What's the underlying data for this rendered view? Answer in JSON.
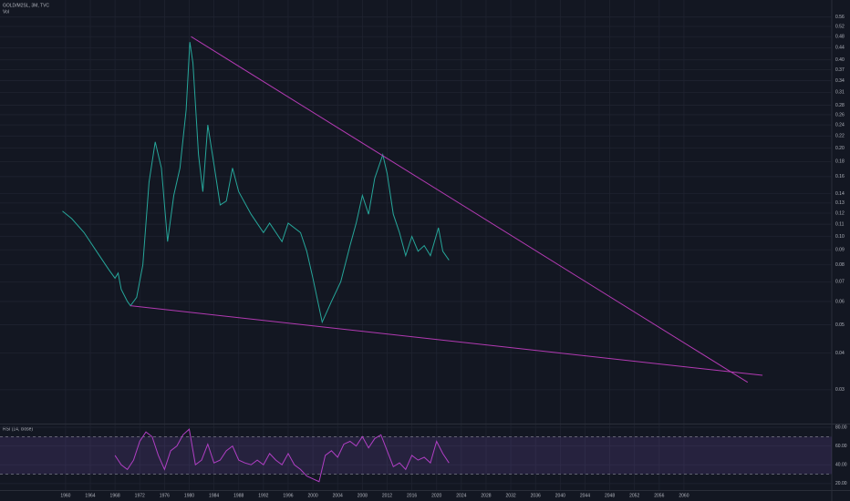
{
  "chart_data": [
    {
      "type": "line",
      "title": "GOLD/M2SL, 3M, TVC",
      "subtitle": "Vol",
      "log_scale": true,
      "grid": true,
      "color": "#26a69a",
      "x": [
        1959.5,
        1961,
        1963,
        1965,
        1967,
        1968,
        1968.5,
        1969,
        1970,
        1970.5,
        1971.5,
        1972.5,
        1973.5,
        1974.5,
        1975.5,
        1976.5,
        1977.5,
        1978.5,
        1979.5,
        1980.1,
        1980.6,
        1981.5,
        1982.2,
        1983,
        1984,
        1985,
        1986,
        1987,
        1988,
        1990,
        1992,
        1993,
        1995,
        1996,
        1998,
        1999,
        2000,
        2001.5,
        2003,
        2004.5,
        2006,
        2007,
        2008,
        2009,
        2010,
        2011.3,
        2012,
        2013,
        2014,
        2015,
        2016,
        2017,
        2018,
        2019,
        2020.3,
        2021,
        2022
      ],
      "values": [
        0.122,
        0.115,
        0.103,
        0.089,
        0.077,
        0.072,
        0.075,
        0.066,
        0.06,
        0.058,
        0.062,
        0.08,
        0.153,
        0.21,
        0.171,
        0.096,
        0.138,
        0.171,
        0.27,
        0.46,
        0.39,
        0.19,
        0.142,
        0.24,
        0.176,
        0.128,
        0.132,
        0.171,
        0.142,
        0.119,
        0.103,
        0.111,
        0.096,
        0.111,
        0.103,
        0.089,
        0.072,
        0.051,
        0.06,
        0.07,
        0.093,
        0.111,
        0.138,
        0.119,
        0.158,
        0.19,
        0.164,
        0.119,
        0.103,
        0.086,
        0.1,
        0.089,
        0.093,
        0.086,
        0.107,
        0.089,
        0.083
      ],
      "xlim": [
        1949.4,
        2083.9
      ],
      "ylim": [
        0.023,
        0.64
      ],
      "yticks": [
        0.03,
        0.04,
        0.05,
        0.06,
        0.07,
        0.08,
        0.09,
        {
          "value": 0.1,
          "label": "0.10"
        },
        0.11,
        0.12,
        0.13,
        0.14,
        0.16,
        0.18,
        {
          "value": 0.2,
          "label": "0.20"
        },
        0.22,
        0.24,
        0.26,
        0.28,
        0.31,
        0.34,
        0.37,
        {
          "value": 0.4,
          "label": "0.40"
        },
        0.44,
        0.48,
        0.52,
        0.56
      ],
      "trendlines": [
        {
          "color": "#b23ab2",
          "x": [
            1980.3,
            2070.3
          ],
          "values": [
            0.48,
            0.0318
          ]
        },
        {
          "color": "#b23ab2",
          "x": [
            1970.5,
            2072.7
          ],
          "values": [
            0.058,
            0.0336
          ]
        }
      ]
    },
    {
      "type": "line",
      "title": "RSI (14, close)",
      "color": "#b03fc4",
      "band_color": "#7e57c2",
      "x": [
        1968,
        1969,
        1970,
        1971,
        1972,
        1973,
        1974,
        1975,
        1976,
        1977,
        1978,
        1979,
        1980,
        1981,
        1982,
        1983,
        1984,
        1985,
        1986,
        1987,
        1988,
        1989,
        1990,
        1991,
        1992,
        1993,
        1994,
        1995,
        1996,
        1997,
        1998,
        1999,
        2000,
        2001,
        2002,
        2003,
        2004,
        2005,
        2006,
        2007,
        2008,
        2009,
        2010,
        2011,
        2012,
        2013,
        2014,
        2015,
        2016,
        2017,
        2018,
        2019,
        2020,
        2021,
        2022
      ],
      "values": [
        50,
        40,
        35,
        45,
        65,
        75,
        70,
        50,
        35,
        55,
        60,
        72,
        78,
        40,
        45,
        62,
        42,
        45,
        55,
        60,
        45,
        42,
        40,
        45,
        40,
        52,
        45,
        40,
        52,
        40,
        35,
        28,
        25,
        22,
        50,
        55,
        48,
        62,
        65,
        60,
        70,
        58,
        68,
        72,
        55,
        38,
        42,
        35,
        50,
        45,
        48,
        42,
        65,
        52,
        42
      ],
      "band": [
        30,
        70
      ],
      "xlim": [
        1949.4,
        2083.9
      ],
      "ylim": [
        13,
        83
      ],
      "yticks": [
        {
          "value": 20,
          "label": "20.00"
        },
        {
          "value": 40,
          "label": "40.00"
        },
        {
          "value": 60,
          "label": "60.00"
        },
        {
          "value": 80,
          "label": "80.00"
        }
      ],
      "xticks": [
        1960,
        1964,
        1968,
        1972,
        1976,
        1980,
        1984,
        1988,
        1992,
        1996,
        2000,
        2004,
        2008,
        2012,
        2016,
        2020,
        2024,
        2028,
        2032,
        2036,
        2040,
        2044,
        2048,
        2052,
        2056,
        2060
      ]
    }
  ]
}
